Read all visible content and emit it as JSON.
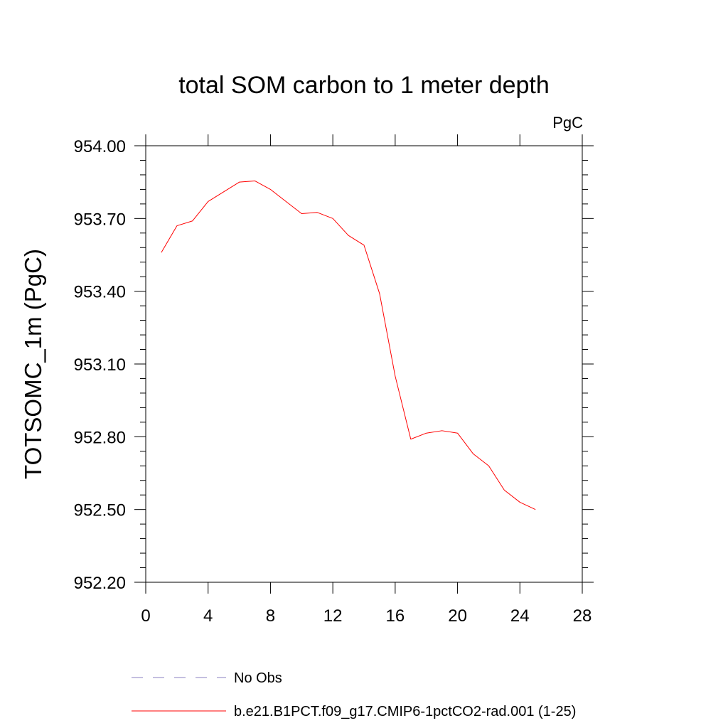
{
  "chart_data": {
    "type": "line",
    "title": "total SOM carbon to 1 meter depth",
    "units_label": "PgC",
    "xlabel": "",
    "ylabel": "TOTSOMC_1m  (PgC)",
    "xlim": [
      0,
      28
    ],
    "ylim": [
      952.2,
      954.0
    ],
    "x_ticks": [
      0,
      4,
      8,
      12,
      16,
      20,
      24,
      28
    ],
    "x_tick_labels": [
      "0",
      "4",
      "8",
      "12",
      "16",
      "20",
      "24",
      "28"
    ],
    "y_ticks": [
      952.2,
      952.5,
      952.8,
      953.1,
      953.4,
      953.7,
      954.0
    ],
    "y_tick_labels": [
      "952.20",
      "952.50",
      "952.80",
      "953.10",
      "953.40",
      "953.70",
      "954.00"
    ],
    "grid": false,
    "legend_placement": "bottom",
    "series": [
      {
        "name": "b.e21.B1PCT.f09_g17.CMIP6-1pctCO2-rad.001 (1-25)",
        "color": "#ff0000",
        "style": "solid",
        "x": [
          1,
          2,
          3,
          4,
          5,
          6,
          7,
          8,
          9,
          10,
          11,
          12,
          13,
          14,
          15,
          16,
          17,
          18,
          19,
          20,
          21,
          22,
          23,
          24,
          25
        ],
        "values": [
          953.56,
          953.67,
          953.69,
          953.77,
          953.81,
          953.85,
          953.855,
          953.82,
          953.77,
          953.72,
          953.725,
          953.7,
          953.63,
          953.59,
          953.39,
          953.05,
          952.79,
          952.815,
          952.825,
          952.815,
          952.73,
          952.68,
          952.58,
          952.53,
          952.5
        ]
      }
    ],
    "legend": [
      {
        "label": "No Obs",
        "color": "#8a7fc0",
        "style": "dashed"
      },
      {
        "label": "b.e21.B1PCT.f09_g17.CMIP6-1pctCO2-rad.001 (1-25)",
        "color": "#ff0000",
        "style": "solid"
      }
    ]
  }
}
